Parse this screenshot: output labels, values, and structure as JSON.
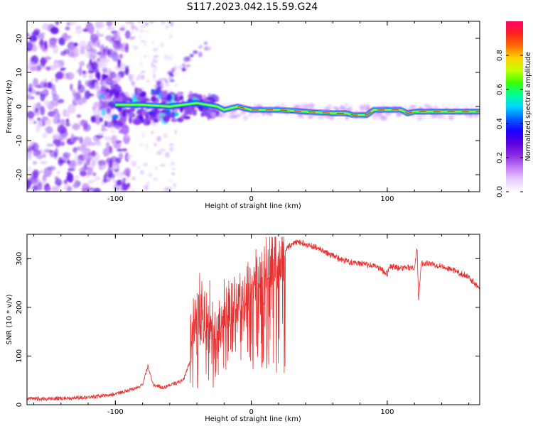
{
  "title": "S117.2023.042.15.59.G24",
  "chart_data": [
    {
      "type": "heatmap",
      "xlabel": "Height of straight line (km)",
      "ylabel": "Frequency (Hz)",
      "xlim": [
        -165,
        168
      ],
      "ylim": [
        -25,
        25
      ],
      "xticks": [
        -100,
        0,
        100
      ],
      "yticks": [
        -20,
        -10,
        0,
        10,
        20
      ],
      "colorbar": {
        "label": "Normalized spectral amplitude",
        "range": [
          0,
          1
        ],
        "ticks": [
          0.0,
          0.2,
          0.4,
          0.6,
          0.8
        ],
        "colors": [
          "#ffffff",
          "#e6ccff",
          "#c27cf5",
          "#8a2be2",
          "#5a00e0",
          "#1a00ff",
          "#0060ff",
          "#00d8ff",
          "#00ff90",
          "#40ff00",
          "#c8ff00",
          "#ffd000",
          "#ff6a00",
          "#ff2020",
          "#ff0066"
        ]
      },
      "ridge": [
        {
          "x": -100,
          "y": 0.5
        },
        {
          "x": -80,
          "y": 0.5
        },
        {
          "x": -60,
          "y": 0
        },
        {
          "x": -40,
          "y": 1
        },
        {
          "x": -25,
          "y": 0
        },
        {
          "x": -20,
          "y": -1
        },
        {
          "x": -10,
          "y": 0
        },
        {
          "x": 0,
          "y": -1
        },
        {
          "x": 20,
          "y": -1
        },
        {
          "x": 40,
          "y": -1.5
        },
        {
          "x": 60,
          "y": -2
        },
        {
          "x": 70,
          "y": -2
        },
        {
          "x": 75,
          "y": -2.5
        },
        {
          "x": 85,
          "y": -2.5
        },
        {
          "x": 90,
          "y": -1
        },
        {
          "x": 110,
          "y": -1
        },
        {
          "x": 115,
          "y": -2
        },
        {
          "x": 120,
          "y": -1.5
        },
        {
          "x": 168,
          "y": -1.5
        }
      ]
    },
    {
      "type": "line",
      "xlabel": "Height of straight line (km)",
      "ylabel": "SNR (10 * v/v)",
      "xlim": [
        -165,
        168
      ],
      "ylim": [
        0,
        350
      ],
      "xticks": [
        -100,
        0,
        100
      ],
      "yticks": [
        0,
        100,
        200,
        300
      ],
      "color": "#e83030",
      "series": [
        {
          "x": [
            -165,
            -150,
            -130,
            -110,
            -100,
            -90,
            -80,
            -76,
            -72,
            -65,
            -60,
            -50,
            -45,
            -42,
            -40,
            -38,
            -35,
            -30,
            -25,
            -20,
            -15,
            -10,
            -5,
            0,
            5,
            10,
            15,
            20,
            25,
            30,
            35,
            40,
            50,
            60,
            70,
            80,
            90,
            95,
            100,
            102,
            110,
            120,
            122,
            123,
            125,
            130,
            140,
            150,
            160,
            168
          ],
          "y": [
            12,
            12,
            14,
            18,
            22,
            30,
            40,
            80,
            40,
            35,
            40,
            50,
            90,
            200,
            150,
            210,
            180,
            180,
            150,
            180,
            200,
            210,
            230,
            240,
            270,
            260,
            300,
            310,
            320,
            330,
            335,
            330,
            320,
            305,
            295,
            290,
            285,
            280,
            268,
            285,
            280,
            282,
            320,
            215,
            290,
            290,
            285,
            275,
            262,
            240
          ]
        }
      ]
    }
  ]
}
